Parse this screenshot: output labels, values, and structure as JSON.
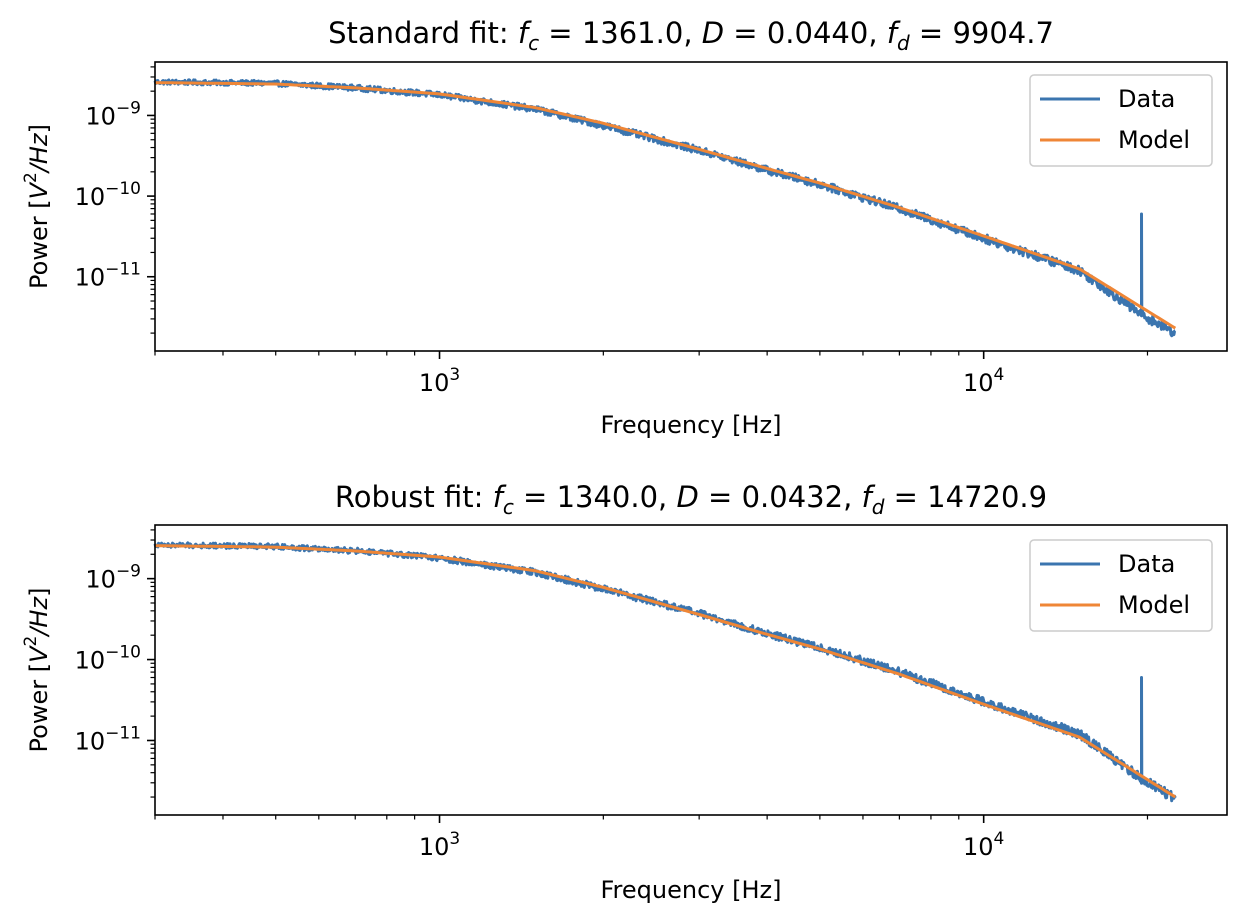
{
  "chart_data": [
    {
      "type": "line",
      "title_prefix": "Standard fit: ",
      "params": {
        "fc": "1361.0",
        "D": "0.0440",
        "fd": "9904.7"
      },
      "xlabel": "Frequency [Hz]",
      "ylabel": "Power [V²/Hz]",
      "xscale": "log",
      "yscale": "log",
      "xlim": [
        300,
        28000
      ],
      "ylim": [
        1.2e-12,
        4.6e-09
      ],
      "x_ticks": [
        {
          "value": 1000,
          "base": "10",
          "exp": "3"
        },
        {
          "value": 10000,
          "base": "10",
          "exp": "4"
        }
      ],
      "y_ticks": [
        {
          "value": 1e-09,
          "base": "10",
          "exp": "−9"
        },
        {
          "value": 1e-10,
          "base": "10",
          "exp": "−10"
        },
        {
          "value": 1e-11,
          "base": "10",
          "exp": "−11"
        }
      ],
      "legend": {
        "position": "upper right",
        "entries": [
          "Data",
          "Model"
        ]
      },
      "series": [
        {
          "name": "Data",
          "color": "#3b75af",
          "x": [
            300,
            400,
            500,
            700,
            1000,
            1500,
            2000,
            3000,
            4000,
            5000,
            7000,
            10000,
            15000,
            19500,
            19500,
            19500,
            22500
          ],
          "y": [
            2.6e-09,
            2.55e-09,
            2.5e-09,
            2.2e-09,
            1.8e-09,
            1.2e-09,
            7.5e-10,
            3.7e-10,
            2.1e-10,
            1.4e-10,
            7e-11,
            3e-11,
            1.2e-11,
            3.4e-12,
            6e-11,
            3.4e-12,
            2e-12
          ]
        },
        {
          "name": "Model",
          "color": "#ef8636",
          "x": [
            300,
            400,
            500,
            700,
            1000,
            1500,
            2000,
            3000,
            4000,
            5000,
            7000,
            10000,
            15000,
            22500
          ],
          "y": [
            2.55e-09,
            2.5e-09,
            2.45e-09,
            2.2e-09,
            1.85e-09,
            1.25e-09,
            8e-10,
            3.8e-10,
            2.2e-10,
            1.45e-10,
            7.2e-11,
            3.2e-11,
            1.25e-11,
            2.3e-12
          ]
        }
      ]
    },
    {
      "type": "line",
      "title_prefix": "Robust fit: ",
      "params": {
        "fc": "1340.0",
        "D": "0.0432",
        "fd": "14720.9"
      },
      "xlabel": "Frequency [Hz]",
      "ylabel": "Power [V²/Hz]",
      "xscale": "log",
      "yscale": "log",
      "xlim": [
        300,
        28000
      ],
      "ylim": [
        1.2e-12,
        4.6e-09
      ],
      "x_ticks": [
        {
          "value": 1000,
          "base": "10",
          "exp": "3"
        },
        {
          "value": 10000,
          "base": "10",
          "exp": "4"
        }
      ],
      "y_ticks": [
        {
          "value": 1e-09,
          "base": "10",
          "exp": "−9"
        },
        {
          "value": 1e-10,
          "base": "10",
          "exp": "−10"
        },
        {
          "value": 1e-11,
          "base": "10",
          "exp": "−11"
        }
      ],
      "legend": {
        "position": "upper right",
        "entries": [
          "Data",
          "Model"
        ]
      },
      "series": [
        {
          "name": "Data",
          "color": "#3b75af",
          "x": [
            300,
            400,
            500,
            700,
            1000,
            1500,
            2000,
            3000,
            4000,
            5000,
            7000,
            10000,
            15000,
            19500,
            19500,
            19500,
            22500
          ],
          "y": [
            2.6e-09,
            2.55e-09,
            2.5e-09,
            2.2e-09,
            1.8e-09,
            1.2e-09,
            7.5e-10,
            3.7e-10,
            2.1e-10,
            1.4e-10,
            7e-11,
            3e-11,
            1.2e-11,
            3.4e-12,
            6e-11,
            3.4e-12,
            1.9e-12
          ]
        },
        {
          "name": "Model",
          "color": "#ef8636",
          "x": [
            300,
            400,
            500,
            700,
            1000,
            1500,
            2000,
            3000,
            4000,
            5000,
            7000,
            10000,
            15000,
            22500
          ],
          "y": [
            2.55e-09,
            2.5e-09,
            2.45e-09,
            2.2e-09,
            1.85e-09,
            1.25e-09,
            7.8e-10,
            3.6e-10,
            2.05e-10,
            1.35e-10,
            6.6e-11,
            2.8e-11,
            1.1e-11,
            2e-12
          ]
        }
      ]
    }
  ]
}
